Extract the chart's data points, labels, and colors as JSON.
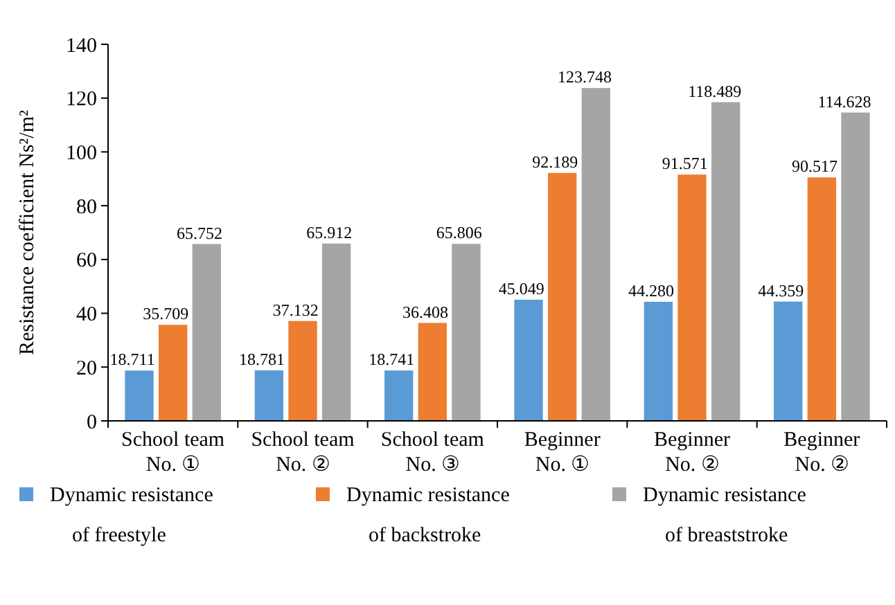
{
  "chart_data": {
    "type": "bar",
    "ylabel": "Resistance coefficient Ns²/m²",
    "categories": [
      "School team\nNo. ①",
      "School team\nNo. ②",
      "School team\nNo. ③",
      "Beginner\nNo. ①",
      "Beginner\nNo. ②",
      "Beginner\nNo. ②"
    ],
    "series": [
      {
        "name": "Dynamic resistance\nof freestyle",
        "color": "#5b9bd5",
        "values": [
          18.711,
          18.781,
          18.741,
          45.049,
          44.28,
          44.359
        ],
        "value_labels": [
          "18.711",
          "18.781",
          "18.741",
          "45.049",
          "44.280",
          "44.359"
        ]
      },
      {
        "name": "Dynamic resistance\nof backstroke",
        "color": "#ed7d31",
        "values": [
          35.709,
          37.132,
          36.408,
          92.189,
          91.571,
          90.517
        ],
        "value_labels": [
          "35.709",
          "37.132",
          "36.408",
          "92.189",
          "91.571",
          "90.517"
        ]
      },
      {
        "name": "Dynamic resistance\nof breaststroke",
        "color": "#a5a5a5",
        "values": [
          65.752,
          65.912,
          65.806,
          123.748,
          118.489,
          114.628
        ],
        "value_labels": [
          "65.752",
          "65.912",
          "65.806",
          "123.748",
          "118.489",
          "114.628"
        ]
      }
    ],
    "ylim": [
      0,
      140
    ],
    "yticks": [
      0,
      20,
      40,
      60,
      80,
      100,
      120,
      140
    ],
    "grid": false,
    "legend": "bottom"
  }
}
